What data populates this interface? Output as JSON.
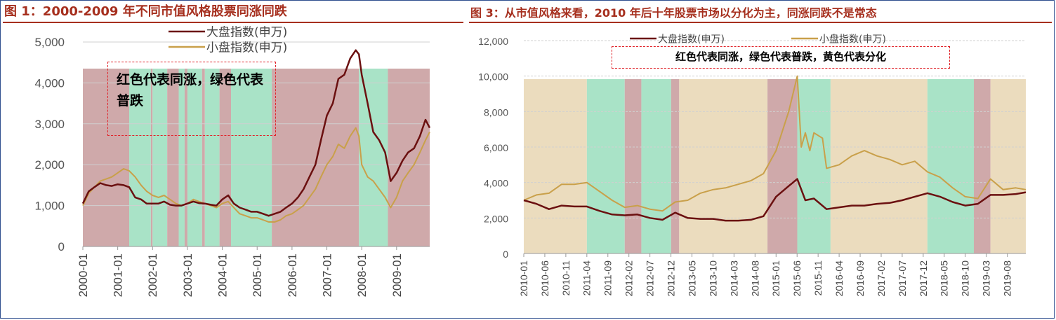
{
  "colors": {
    "title": "#a62f1e",
    "large_cap": "#6b1010",
    "small_cap": "#c9a04a",
    "red_band": "#cfa9aa",
    "green_band": "#a9e3c7",
    "yellow_band": "#ebdcbe"
  },
  "chart_data": [
    {
      "type": "line",
      "title": "图 1：2000-2009 年不同市值风格股票同涨同跌",
      "note": "红色代表同涨，绿色代表普跌",
      "legend_position": "top",
      "yticks": [
        "0",
        "1,000",
        "2,000",
        "3,000",
        "4,000",
        "5,000"
      ],
      "ylim": [
        0,
        5000
      ],
      "xticks": [
        "2000-01",
        "2001-01",
        "2002-01",
        "2003-01",
        "2004-01",
        "2005-01",
        "2006-01",
        "2007-01",
        "2008-01",
        "2009-01"
      ],
      "x_range": [
        2000.0,
        2009.95
      ],
      "bands": [
        {
          "start": 2000.0,
          "end": 2001.33,
          "color": "red"
        },
        {
          "start": 2001.33,
          "end": 2001.95,
          "color": "green"
        },
        {
          "start": 2001.95,
          "end": 2002.0,
          "color": "red"
        },
        {
          "start": 2002.0,
          "end": 2002.42,
          "color": "green"
        },
        {
          "start": 2002.42,
          "end": 2002.75,
          "color": "red"
        },
        {
          "start": 2002.75,
          "end": 2002.92,
          "color": "green"
        },
        {
          "start": 2002.92,
          "end": 2003.0,
          "color": "red"
        },
        {
          "start": 2003.0,
          "end": 2003.42,
          "color": "green"
        },
        {
          "start": 2003.42,
          "end": 2003.5,
          "color": "red"
        },
        {
          "start": 2003.5,
          "end": 2003.92,
          "color": "green"
        },
        {
          "start": 2003.92,
          "end": 2004.25,
          "color": "red"
        },
        {
          "start": 2004.25,
          "end": 2005.42,
          "color": "green"
        },
        {
          "start": 2005.42,
          "end": 2007.92,
          "color": "red"
        },
        {
          "start": 2007.92,
          "end": 2008.75,
          "color": "green"
        },
        {
          "start": 2008.75,
          "end": 2009.95,
          "color": "red"
        }
      ],
      "series": [
        {
          "name": "大盘指数(申万)",
          "color": "large",
          "x": [
            2000.0,
            2000.17,
            2000.33,
            2000.5,
            2000.67,
            2000.83,
            2001.0,
            2001.17,
            2001.33,
            2001.5,
            2001.67,
            2001.83,
            2002.0,
            2002.17,
            2002.33,
            2002.5,
            2002.67,
            2002.83,
            2003.0,
            2003.17,
            2003.33,
            2003.5,
            2003.67,
            2003.83,
            2004.0,
            2004.17,
            2004.33,
            2004.5,
            2004.67,
            2004.83,
            2005.0,
            2005.17,
            2005.33,
            2005.5,
            2005.67,
            2005.83,
            2006.0,
            2006.17,
            2006.33,
            2006.5,
            2006.67,
            2006.83,
            2007.0,
            2007.17,
            2007.33,
            2007.5,
            2007.67,
            2007.83,
            2007.92,
            2008.0,
            2008.17,
            2008.33,
            2008.5,
            2008.67,
            2008.83,
            2009.0,
            2009.17,
            2009.33,
            2009.5,
            2009.67,
            2009.83,
            2009.95
          ],
          "y": [
            1050,
            1350,
            1450,
            1550,
            1500,
            1480,
            1520,
            1500,
            1450,
            1200,
            1150,
            1050,
            1050,
            1050,
            1100,
            1020,
            1000,
            1000,
            1050,
            1100,
            1060,
            1050,
            1020,
            1000,
            1150,
            1250,
            1050,
            950,
            900,
            850,
            850,
            800,
            750,
            800,
            850,
            950,
            1050,
            1200,
            1400,
            1700,
            2000,
            2600,
            3200,
            3500,
            4100,
            4200,
            4600,
            4800,
            4700,
            4200,
            3500,
            2800,
            2600,
            2300,
            1600,
            1800,
            2100,
            2300,
            2400,
            2700,
            3100,
            2900
          ]
        },
        {
          "name": "小盘指数(申万)",
          "color": "small",
          "x": [
            2000.0,
            2000.17,
            2000.33,
            2000.5,
            2000.67,
            2000.83,
            2001.0,
            2001.17,
            2001.33,
            2001.5,
            2001.67,
            2001.83,
            2002.0,
            2002.17,
            2002.33,
            2002.5,
            2002.67,
            2002.83,
            2003.0,
            2003.17,
            2003.33,
            2003.5,
            2003.67,
            2003.83,
            2004.0,
            2004.17,
            2004.33,
            2004.5,
            2004.67,
            2004.83,
            2005.0,
            2005.17,
            2005.33,
            2005.5,
            2005.67,
            2005.83,
            2006.0,
            2006.17,
            2006.33,
            2006.5,
            2006.67,
            2006.83,
            2007.0,
            2007.17,
            2007.33,
            2007.5,
            2007.67,
            2007.83,
            2007.92,
            2008.0,
            2008.17,
            2008.33,
            2008.5,
            2008.67,
            2008.83,
            2009.0,
            2009.17,
            2009.33,
            2009.5,
            2009.67,
            2009.83,
            2009.95
          ],
          "y": [
            1000,
            1300,
            1450,
            1600,
            1650,
            1700,
            1800,
            1900,
            1850,
            1700,
            1500,
            1350,
            1250,
            1200,
            1250,
            1150,
            1050,
            1000,
            1050,
            1150,
            1100,
            1050,
            1000,
            950,
            1050,
            1100,
            950,
            800,
            750,
            700,
            700,
            650,
            600,
            600,
            650,
            750,
            800,
            900,
            1000,
            1200,
            1400,
            1700,
            2000,
            2200,
            2500,
            2400,
            2700,
            2900,
            2700,
            2000,
            1700,
            1600,
            1400,
            1200,
            950,
            1200,
            1600,
            1800,
            2000,
            2300,
            2600,
            2800
          ]
        }
      ]
    },
    {
      "type": "line",
      "title": "图 3：从市值风格来看，2010 年后十年股票市场以分化为主，同涨同跌不是常态",
      "note": "红色代表同涨，绿色代表普跌，黄色代表分化",
      "legend_position": "top",
      "yticks": [
        "0",
        "2,000",
        "4,000",
        "6,000",
        "8,000",
        "10,000",
        "12,000"
      ],
      "ylim": [
        0,
        12000
      ],
      "xticks": [
        "2010-01",
        "2010-06",
        "2010-11",
        "2011-04",
        "2011-09",
        "2012-02",
        "2012-07",
        "2012-12",
        "2013-05",
        "2013-10",
        "2014-03",
        "2014-08",
        "2015-01",
        "2015-06",
        "2015-11",
        "2016-04",
        "2016-09",
        "2017-02",
        "2017-07",
        "2017-12",
        "2018-05",
        "2018-10",
        "2019-03",
        "2019-08"
      ],
      "x_range": [
        2010.0,
        2019.95
      ],
      "bands": [
        {
          "start": 2010.0,
          "end": 2011.25,
          "color": "yellow"
        },
        {
          "start": 2011.25,
          "end": 2012.0,
          "color": "green"
        },
        {
          "start": 2012.0,
          "end": 2012.33,
          "color": "red"
        },
        {
          "start": 2012.33,
          "end": 2012.92,
          "color": "green"
        },
        {
          "start": 2012.92,
          "end": 2013.08,
          "color": "red"
        },
        {
          "start": 2013.08,
          "end": 2014.83,
          "color": "yellow"
        },
        {
          "start": 2014.83,
          "end": 2015.42,
          "color": "red"
        },
        {
          "start": 2015.42,
          "end": 2016.08,
          "color": "green"
        },
        {
          "start": 2016.08,
          "end": 2018.0,
          "color": "yellow"
        },
        {
          "start": 2018.0,
          "end": 2018.92,
          "color": "green"
        },
        {
          "start": 2018.92,
          "end": 2019.25,
          "color": "red"
        },
        {
          "start": 2019.25,
          "end": 2019.95,
          "color": "yellow"
        }
      ],
      "series": [
        {
          "name": "大盘指数(申万)",
          "color": "large",
          "x": [
            2010.0,
            2010.25,
            2010.5,
            2010.75,
            2011.0,
            2011.25,
            2011.5,
            2011.75,
            2012.0,
            2012.25,
            2012.5,
            2012.75,
            2013.0,
            2013.25,
            2013.5,
            2013.75,
            2014.0,
            2014.25,
            2014.5,
            2014.75,
            2015.0,
            2015.25,
            2015.42,
            2015.58,
            2015.75,
            2016.0,
            2016.25,
            2016.5,
            2016.75,
            2017.0,
            2017.25,
            2017.5,
            2017.75,
            2018.0,
            2018.25,
            2018.5,
            2018.75,
            2019.0,
            2019.25,
            2019.5,
            2019.75,
            2019.95
          ],
          "y": [
            3000,
            2800,
            2500,
            2700,
            2650,
            2650,
            2400,
            2200,
            2150,
            2200,
            2000,
            1900,
            2300,
            2000,
            1950,
            1950,
            1850,
            1850,
            1900,
            2100,
            3200,
            3800,
            4200,
            3000,
            3100,
            2500,
            2600,
            2700,
            2700,
            2800,
            2850,
            3000,
            3200,
            3400,
            3200,
            2900,
            2700,
            2800,
            3300,
            3300,
            3350,
            3450
          ]
        },
        {
          "name": "小盘指数(申万)",
          "color": "small",
          "x": [
            2010.0,
            2010.25,
            2010.5,
            2010.75,
            2011.0,
            2011.25,
            2011.5,
            2011.75,
            2012.0,
            2012.25,
            2012.5,
            2012.75,
            2013.0,
            2013.25,
            2013.5,
            2013.75,
            2014.0,
            2014.25,
            2014.5,
            2014.75,
            2015.0,
            2015.25,
            2015.42,
            2015.5,
            2015.58,
            2015.67,
            2015.75,
            2015.92,
            2016.0,
            2016.25,
            2016.5,
            2016.75,
            2017.0,
            2017.25,
            2017.5,
            2017.75,
            2018.0,
            2018.25,
            2018.5,
            2018.75,
            2019.0,
            2019.25,
            2019.5,
            2019.75,
            2019.95
          ],
          "y": [
            3000,
            3300,
            3400,
            3900,
            3900,
            4000,
            3500,
            3000,
            2600,
            2700,
            2500,
            2400,
            2900,
            3000,
            3400,
            3600,
            3700,
            3900,
            4100,
            4500,
            5800,
            8000,
            10000,
            6000,
            6800,
            5800,
            6800,
            6500,
            4800,
            5000,
            5500,
            5800,
            5500,
            5300,
            5000,
            5200,
            4600,
            4300,
            3700,
            3200,
            3100,
            4200,
            3600,
            3700,
            3600
          ]
        }
      ]
    }
  ]
}
